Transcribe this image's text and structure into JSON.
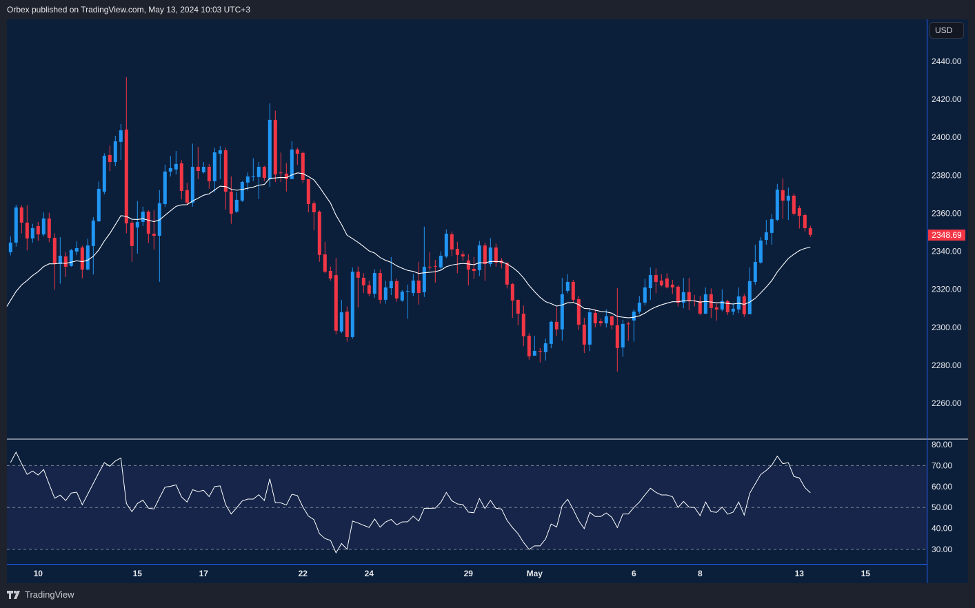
{
  "header": {
    "title": "Orbex published on TradingView.com, May 13, 2024 10:03 UTC+3"
  },
  "currency_button": "USD",
  "footer": {
    "brand": "TradingView"
  },
  "colors": {
    "up": "#2196f3",
    "down": "#f23645",
    "ma": "#ffffff",
    "rsi": "#ffffff",
    "axis_line": "#2962ff",
    "background": "#0b1f3b",
    "rsi_band": "#162549"
  },
  "chart_data": {
    "type": "candlestick",
    "title": "",
    "last_price": "2348.69",
    "price_axis": {
      "ticks": [
        2440,
        2420,
        2400,
        2380,
        2360,
        2340,
        2320,
        2300,
        2280,
        2260
      ],
      "tick_labels": [
        "2440.00",
        "2420.00",
        "2400.00",
        "2380.00",
        "2360.00",
        "2340.00",
        "2320.00",
        "2300.00",
        "2280.00",
        "2260.00"
      ],
      "range": [
        2240,
        2460
      ]
    },
    "time_axis": {
      "labels": [
        {
          "label": "10",
          "index": 5
        },
        {
          "label": "15",
          "index": 23
        },
        {
          "label": "17",
          "index": 35
        },
        {
          "label": "22",
          "index": 53
        },
        {
          "label": "24",
          "index": 65
        },
        {
          "label": "29",
          "index": 83
        },
        {
          "label": "May",
          "index": 95
        },
        {
          "label": "6",
          "index": 113
        },
        {
          "label": "8",
          "index": 125
        },
        {
          "label": "13",
          "index": 143
        },
        {
          "label": "15",
          "index": 155
        }
      ]
    },
    "ma": {
      "type": "EMA",
      "period": 20,
      "seed": 2311
    },
    "candles_ohlc": [
      [
        2339.5,
        2347.9,
        2337.9,
        2344.6
      ],
      [
        2344.6,
        2364.5,
        2342.5,
        2363.1
      ],
      [
        2363.1,
        2364.2,
        2349.5,
        2355.1
      ],
      [
        2355.1,
        2364.2,
        2340.5,
        2346.8
      ],
      [
        2346.8,
        2354.5,
        2344.6,
        2352.2
      ],
      [
        2353.3,
        2355.5,
        2345.5,
        2348.9
      ],
      [
        2348.9,
        2360.5,
        2347.9,
        2357.3
      ],
      [
        2357.3,
        2360.3,
        2344.8,
        2347.1
      ],
      [
        2347.1,
        2349.5,
        2319.9,
        2333.3
      ],
      [
        2333.3,
        2347.5,
        2323.0,
        2337.7
      ],
      [
        2337.3,
        2339.6,
        2326.5,
        2331.9
      ],
      [
        2332.3,
        2341.3,
        2331.9,
        2340.6
      ],
      [
        2339.9,
        2345.3,
        2338.0,
        2341.7
      ],
      [
        2342.0,
        2343.0,
        2325.8,
        2330.4
      ],
      [
        2330.4,
        2346.6,
        2330.0,
        2343.1
      ],
      [
        2342.8,
        2358.0,
        2327.8,
        2356.2
      ],
      [
        2355.8,
        2376.7,
        2355.5,
        2372.9
      ],
      [
        2371.4,
        2391.6,
        2370.0,
        2390.3
      ],
      [
        2390.7,
        2395.6,
        2382.2,
        2387.0
      ],
      [
        2387.0,
        2400.8,
        2384.8,
        2397.9
      ],
      [
        2397.6,
        2407.0,
        2388.0,
        2403.7
      ],
      [
        2404.1,
        2431.7,
        2349.5,
        2354.7
      ],
      [
        2355.1,
        2356.5,
        2334.5,
        2342.8
      ],
      [
        2352.6,
        2366.5,
        2338.8,
        2355.5
      ],
      [
        2355.5,
        2363.5,
        2353.3,
        2360.9
      ],
      [
        2360.9,
        2361.6,
        2344.4,
        2349.3
      ],
      [
        2349.3,
        2361.6,
        2341.0,
        2348.2
      ],
      [
        2348.2,
        2372.2,
        2324.0,
        2365.3
      ],
      [
        2364.9,
        2385.6,
        2363.5,
        2382.0
      ],
      [
        2382.0,
        2390.3,
        2379.4,
        2383.8
      ],
      [
        2383.1,
        2392.8,
        2380.5,
        2386.0
      ],
      [
        2386.3,
        2388.0,
        2367.4,
        2371.8
      ],
      [
        2372.2,
        2376.0,
        2364.6,
        2365.6
      ],
      [
        2365.6,
        2396.7,
        2363.5,
        2384.5
      ],
      [
        2384.5,
        2395.0,
        2378.0,
        2382.3
      ],
      [
        2381.6,
        2387.0,
        2381.0,
        2384.5
      ],
      [
        2384.5,
        2385.9,
        2373.0,
        2376.9
      ],
      [
        2376.9,
        2394.5,
        2371.0,
        2392.1
      ],
      [
        2391.4,
        2395.3,
        2378.0,
        2393.2
      ],
      [
        2393.2,
        2394.6,
        2362.0,
        2371.4
      ],
      [
        2371.4,
        2379.4,
        2354.5,
        2359.8
      ],
      [
        2360.9,
        2371.0,
        2360.2,
        2367.1
      ],
      [
        2366.7,
        2377.0,
        2366.0,
        2376.5
      ],
      [
        2376.2,
        2381.5,
        2372.0,
        2379.4
      ],
      [
        2379.1,
        2389.0,
        2377.0,
        2379.4
      ],
      [
        2379.1,
        2387.0,
        2367.5,
        2384.5
      ],
      [
        2384.5,
        2385.0,
        2377.0,
        2378.7
      ],
      [
        2378.0,
        2417.9,
        2374.0,
        2409.2
      ],
      [
        2409.2,
        2414.0,
        2376.5,
        2380.5
      ],
      [
        2381.5,
        2392.0,
        2376.5,
        2381.2
      ],
      [
        2380.9,
        2386.5,
        2371.5,
        2378.0
      ],
      [
        2378.0,
        2398.0,
        2378.0,
        2393.6
      ],
      [
        2393.6,
        2394.5,
        2385.5,
        2391.4
      ],
      [
        2391.8,
        2392.5,
        2376.0,
        2377.6
      ],
      [
        2378.0,
        2378.0,
        2360.5,
        2364.9
      ],
      [
        2365.3,
        2366.5,
        2351.0,
        2360.6
      ],
      [
        2360.9,
        2361.5,
        2334.5,
        2338.1
      ],
      [
        2338.4,
        2345.0,
        2328.5,
        2329.3
      ],
      [
        2329.7,
        2332.0,
        2324.5,
        2325.7
      ],
      [
        2327.5,
        2336.5,
        2296.3,
        2298.2
      ],
      [
        2297.8,
        2314.5,
        2297.0,
        2307.9
      ],
      [
        2308.3,
        2311.0,
        2292.5,
        2294.9
      ],
      [
        2294.9,
        2331.5,
        2294.0,
        2329.3
      ],
      [
        2329.3,
        2332.0,
        2310.5,
        2326.1
      ],
      [
        2326.1,
        2328.5,
        2318.0,
        2322.1
      ],
      [
        2322.1,
        2324.5,
        2316.5,
        2317.7
      ],
      [
        2317.7,
        2330.5,
        2315.5,
        2328.6
      ],
      [
        2328.6,
        2330.5,
        2312.5,
        2314.5
      ],
      [
        2314.5,
        2324.5,
        2312.5,
        2321.0
      ],
      [
        2320.6,
        2337.0,
        2317.0,
        2324.3
      ],
      [
        2324.3,
        2325.5,
        2313.5,
        2315.2
      ],
      [
        2314.1,
        2319.5,
        2313.5,
        2318.8
      ],
      [
        2319.0,
        2322.5,
        2304.5,
        2319.2
      ],
      [
        2318.1,
        2328.0,
        2316.5,
        2324.6
      ],
      [
        2324.6,
        2334.5,
        2312.0,
        2318.1
      ],
      [
        2318.5,
        2353.0,
        2316.0,
        2331.9
      ],
      [
        2331.9,
        2339.5,
        2330.0,
        2331.5
      ],
      [
        2332.3,
        2335.5,
        2323.5,
        2332.1
      ],
      [
        2331.5,
        2340.0,
        2330.5,
        2337.7
      ],
      [
        2337.3,
        2351.5,
        2336.5,
        2349.3
      ],
      [
        2349.0,
        2350.5,
        2337.5,
        2341.0
      ],
      [
        2341.3,
        2345.0,
        2328.5,
        2338.1
      ],
      [
        2338.4,
        2340.0,
        2335.0,
        2337.3
      ],
      [
        2335.2,
        2338.5,
        2322.0,
        2330.4
      ],
      [
        2330.8,
        2337.0,
        2325.5,
        2329.7
      ],
      [
        2330.1,
        2345.5,
        2327.0,
        2343.1
      ],
      [
        2343.1,
        2344.5,
        2324.5,
        2333.3
      ],
      [
        2333.3,
        2347.0,
        2332.0,
        2342.0
      ],
      [
        2342.0,
        2344.0,
        2332.0,
        2334.1
      ],
      [
        2335.2,
        2336.5,
        2331.0,
        2333.7
      ],
      [
        2333.7,
        2334.5,
        2320.5,
        2322.5
      ],
      [
        2322.8,
        2323.5,
        2305.0,
        2314.1
      ],
      [
        2314.5,
        2314.5,
        2301.0,
        2307.2
      ],
      [
        2307.2,
        2311.5,
        2290.0,
        2295.3
      ],
      [
        2295.6,
        2297.0,
        2283.0,
        2284.7
      ],
      [
        2285.1,
        2295.5,
        2285.0,
        2287.6
      ],
      [
        2287.6,
        2289.0,
        2281.5,
        2287.3
      ],
      [
        2286.9,
        2294.0,
        2282.5,
        2291.6
      ],
      [
        2291.3,
        2303.5,
        2289.0,
        2302.9
      ],
      [
        2302.9,
        2310.5,
        2295.5,
        2298.9
      ],
      [
        2298.9,
        2326.0,
        2293.0,
        2317.4
      ],
      [
        2319.2,
        2328.0,
        2318.0,
        2323.9
      ],
      [
        2323.9,
        2325.0,
        2313.0,
        2314.5
      ],
      [
        2314.8,
        2316.5,
        2298.5,
        2301.4
      ],
      [
        2301.4,
        2305.0,
        2286.5,
        2290.9
      ],
      [
        2290.9,
        2309.5,
        2287.5,
        2307.9
      ],
      [
        2307.6,
        2309.0,
        2300.0,
        2302.1
      ],
      [
        2303.2,
        2304.5,
        2300.5,
        2302.1
      ],
      [
        2302.1,
        2309.5,
        2300.0,
        2305.8
      ],
      [
        2305.8,
        2306.0,
        2299.0,
        2301.1
      ],
      [
        2301.1,
        2320.6,
        2276.7,
        2289.1
      ],
      [
        2289.4,
        2304.0,
        2284.5,
        2301.8
      ],
      [
        2302.0,
        2303.0,
        2293.0,
        2301.8
      ],
      [
        2303.6,
        2309.5,
        2292.5,
        2308.3
      ],
      [
        2308.3,
        2316.5,
        2307.0,
        2313.0
      ],
      [
        2313.0,
        2325.5,
        2311.5,
        2321.0
      ],
      [
        2320.6,
        2331.5,
        2314.5,
        2327.5
      ],
      [
        2327.5,
        2331.0,
        2318.0,
        2323.9
      ],
      [
        2324.6,
        2328.0,
        2321.5,
        2322.1
      ],
      [
        2325.7,
        2328.5,
        2320.5,
        2321.0
      ],
      [
        2322.5,
        2325.0,
        2317.5,
        2321.0
      ],
      [
        2321.4,
        2322.0,
        2311.0,
        2313.0
      ],
      [
        2313.0,
        2326.0,
        2310.0,
        2318.5
      ],
      [
        2318.5,
        2326.0,
        2309.0,
        2313.8
      ],
      [
        2314.1,
        2317.0,
        2311.0,
        2313.8
      ],
      [
        2313.8,
        2316.5,
        2306.5,
        2307.2
      ],
      [
        2307.2,
        2321.0,
        2307.0,
        2317.4
      ],
      [
        2317.4,
        2320.5,
        2305.0,
        2310.1
      ],
      [
        2310.5,
        2312.5,
        2303.5,
        2309.4
      ],
      [
        2309.4,
        2320.0,
        2308.5,
        2313.8
      ],
      [
        2313.8,
        2314.5,
        2306.5,
        2307.9
      ],
      [
        2308.3,
        2313.0,
        2306.5,
        2309.8
      ],
      [
        2309.4,
        2321.0,
        2307.5,
        2316.3
      ],
      [
        2316.3,
        2317.5,
        2305.5,
        2306.9
      ],
      [
        2306.9,
        2331.5,
        2306.9,
        2324.3
      ],
      [
        2323.9,
        2343.5,
        2322.5,
        2334.4
      ],
      [
        2334.1,
        2347.5,
        2333.5,
        2345.7
      ],
      [
        2346.0,
        2356.5,
        2343.5,
        2350.0
      ],
      [
        2349.7,
        2359.5,
        2343.5,
        2356.9
      ],
      [
        2356.6,
        2375.5,
        2355.8,
        2372.5
      ],
      [
        2372.2,
        2378.5,
        2357.0,
        2366.7
      ],
      [
        2366.7,
        2373.5,
        2356.5,
        2369.3
      ],
      [
        2369.3,
        2370.5,
        2359.0,
        2359.8
      ],
      [
        2362.7,
        2364.0,
        2352.0,
        2358.7
      ],
      [
        2359.1,
        2360.0,
        2350.5,
        2352.2
      ],
      [
        2352.2,
        2353.5,
        2347.5,
        2348.69
      ]
    ],
    "rsi": {
      "ticks": [
        80,
        70,
        60,
        50,
        40,
        30
      ],
      "tick_labels": [
        "80.00",
        "70.00",
        "60.00",
        "50.00",
        "40.00",
        "30.00"
      ],
      "levels": [
        70,
        50,
        30
      ],
      "values": [
        71.5,
        76.4,
        70.9,
        65.8,
        67.4,
        65.5,
        68.1,
        61.1,
        54.4,
        55.9,
        53.3,
        56.9,
        57.3,
        51.3,
        56.4,
        61.5,
        66.6,
        71.4,
        69.7,
        72.2,
        73.6,
        51.9,
        48.0,
        51.9,
        53.5,
        49.7,
        49.3,
        54.6,
        59.7,
        60.1,
        60.8,
        55.0,
        52.6,
        58.5,
        57.6,
        58.2,
        55.2,
        60.0,
        60.3,
        51.3,
        46.9,
        49.9,
        53.1,
        54.0,
        54.0,
        56.1,
        53.3,
        63.7,
        52.3,
        52.2,
        51.2,
        56.3,
        55.7,
        50.2,
        45.9,
        44.2,
        37.5,
        35.2,
        34.3,
        28.4,
        32.8,
        30.1,
        43.5,
        42.6,
        41.5,
        40.5,
        44.5,
        40.6,
        43.1,
        44.3,
        41.7,
        43.1,
        43.2,
        45.9,
        43.5,
        49.6,
        49.6,
        49.7,
        52.4,
        57.2,
        53.2,
        51.7,
        51.4,
        47.8,
        47.5,
        54.3,
        49.5,
        53.4,
        49.6,
        49.3,
        43.9,
        40.4,
        37.5,
        33.3,
        30.0,
        31.7,
        31.7,
        35.0,
        42.1,
        40.7,
        50.9,
        53.9,
        49.1,
        43.7,
        39.9,
        47.7,
        45.7,
        45.7,
        47.4,
        45.3,
        40.4,
        46.9,
        46.9,
        50.0,
        52.6,
        56.0,
        59.2,
        57.2,
        56.0,
        56.0,
        55.1,
        50.0,
        52.9,
        50.2,
        50.0,
        46.1,
        52.6,
        48.0,
        47.7,
        50.2,
        46.8,
        47.8,
        52.6,
        46.4,
        56.8,
        61.3,
        65.8,
        67.7,
        70.2,
        74.5,
        70.9,
        71.4,
        64.8,
        64.1,
        59.5,
        57.0
      ]
    }
  }
}
